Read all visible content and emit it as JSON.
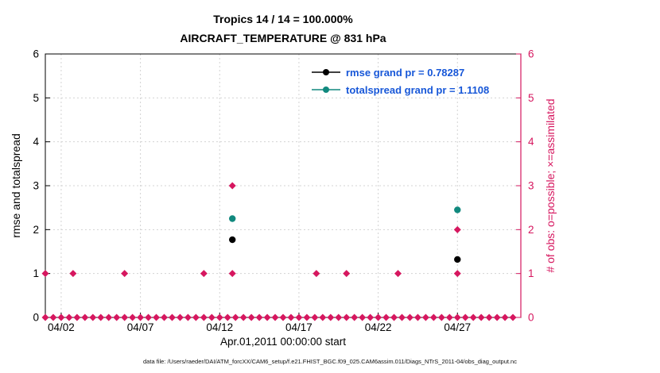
{
  "chart_data": {
    "type": "scatter",
    "title": "Tropics 14 / 14 = 100.000%",
    "subtitle": "AIRCRAFT_TEMPERATURE @ 831 hPa",
    "xlabel": "Apr.01,2011 00:00:00 start",
    "ylabel_left": "rmse and totalspread",
    "ylabel_right": "# of obs: o=possible; ×=assimilated",
    "caption": "data file: /Users/raeder/DAI/ATM_forcXX/CAM6_setup/f.e21.FHIST_BGC.f09_025.CAM6assim.011/Diags_NTrS_2011-04/obs_diag_output.nc",
    "x_range": [
      1,
      31
    ],
    "y_range": [
      0,
      6
    ],
    "x_ticks": [
      {
        "day": 2,
        "label": "04/02"
      },
      {
        "day": 7,
        "label": "04/07"
      },
      {
        "day": 12,
        "label": "04/12"
      },
      {
        "day": 17,
        "label": "04/17"
      },
      {
        "day": 22,
        "label": "04/22"
      },
      {
        "day": 27,
        "label": "04/27"
      }
    ],
    "y_ticks": [
      0,
      1,
      2,
      3,
      4,
      5,
      6
    ],
    "grid": true,
    "legend_position": "top-center-right",
    "series": [
      {
        "name": "rmse",
        "legend_label": "rmse grand pr = 0.78287",
        "color": "#000000",
        "points": [
          {
            "day": 12.8,
            "value": 1.77
          },
          {
            "day": 27.0,
            "value": 1.32
          }
        ]
      },
      {
        "name": "totalspread",
        "legend_label": "totalspread grand pr = 1.1108",
        "color": "#11897e",
        "points": [
          {
            "day": 12.8,
            "value": 2.25
          },
          {
            "day": 27.0,
            "value": 2.45
          }
        ]
      }
    ],
    "obs_series": {
      "name": "number-of-obs",
      "marker": "diamond",
      "color": "#d6175f",
      "zero_row": {
        "start_day": 1.0,
        "end_day": 30.75,
        "step_days": 0.5,
        "value": 0
      },
      "markers": [
        {
          "day": 1.0,
          "value": 1
        },
        {
          "day": 2.75,
          "value": 1
        },
        {
          "day": 6.0,
          "value": 1
        },
        {
          "day": 11.0,
          "value": 1
        },
        {
          "day": 12.8,
          "value": 1
        },
        {
          "day": 12.8,
          "value": 3
        },
        {
          "day": 18.1,
          "value": 1
        },
        {
          "day": 20.0,
          "value": 1
        },
        {
          "day": 23.25,
          "value": 1
        },
        {
          "day": 27.0,
          "value": 1
        },
        {
          "day": 27.0,
          "value": 2
        }
      ]
    },
    "colors": {
      "grid": "#d3d3d3",
      "axis": "#000000",
      "right_axis": "#d6175f",
      "legend_text": "#1757d8",
      "background": "#ffffff"
    }
  }
}
